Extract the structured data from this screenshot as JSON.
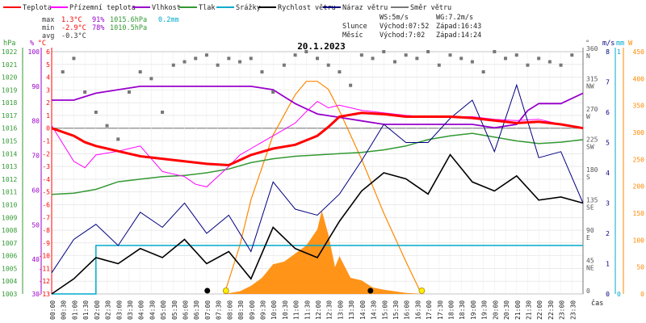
{
  "chart_data": {
    "type": "line",
    "title": "20.1.2023",
    "legend": [
      {
        "name": "Teplota",
        "color": "#ff0000"
      },
      {
        "name": "Přízemní teplota",
        "color": "#ff00ff"
      },
      {
        "name": "Vlhkost",
        "color": "#9900cc"
      },
      {
        "name": "Tlak",
        "color": "#339933"
      },
      {
        "name": "Srážky",
        "color": "#00aacc"
      },
      {
        "name": "Rychlost větru",
        "color": "#000000"
      },
      {
        "name": "Náraz větru",
        "color": "#000080"
      },
      {
        "name": "Směr větru",
        "color": "#777777"
      }
    ],
    "stats": {
      "max": {
        "label": "max",
        "temp": "1.3°C",
        "hum": "91%",
        "press": "1015.6hPa",
        "rain": "0.2mm"
      },
      "min": {
        "label": "min",
        "temp": "-2.9°C",
        "hum": "78%",
        "press": "1010.5hPa"
      },
      "avg": {
        "label": "avg",
        "temp": "-0.3°C"
      }
    },
    "info": {
      "ws": "WS:5m/s",
      "wg": "WG:7.2m/s",
      "slunce_label": "Slunce",
      "slunce_rise": "Východ:07:52",
      "slunce_set": "Západ:16:43",
      "mesic_label": "Měsíc",
      "mesic_rise": "Východ:7:02",
      "mesic_set": "Západ:14:24"
    },
    "axes": {
      "hpa": {
        "unit": "hPa",
        "min": 1003,
        "max": 1022,
        "ticks": [
          1003,
          1004,
          1005,
          1006,
          1007,
          1008,
          1009,
          1010,
          1011,
          1012,
          1013,
          1014,
          1015,
          1016,
          1017,
          1018,
          1019,
          1020,
          1021,
          1022
        ]
      },
      "pct": {
        "unit": "%",
        "min": 30,
        "max": 100,
        "ticks": [
          30,
          40,
          50,
          60,
          70,
          80,
          90,
          100
        ]
      },
      "temp": {
        "unit": "°C",
        "min": -13,
        "max": 6,
        "ticks": [
          -13,
          -12,
          -11,
          -10,
          -9,
          -8,
          -7,
          -6,
          -5,
          -4,
          -3,
          -2,
          -1,
          0,
          1,
          2,
          3,
          4,
          5,
          6
        ]
      },
      "dir": {
        "unit": "°",
        "ticks": [
          {
            "v": 0,
            "t": "0"
          },
          {
            "v": 45,
            "t": "45",
            "c": "NE"
          },
          {
            "v": 90,
            "t": "90",
            "c": "E"
          },
          {
            "v": 135,
            "t": "135",
            "c": "SE"
          },
          {
            "v": 180,
            "t": "180",
            "c": "S"
          },
          {
            "v": 225,
            "t": "225",
            "c": "SW"
          },
          {
            "v": 270,
            "t": "270",
            "c": "W"
          },
          {
            "v": 315,
            "t": "315",
            "c": "NW"
          },
          {
            "v": 360,
            "t": "360",
            "c": "N"
          }
        ]
      },
      "wind": {
        "unit": "m/s",
        "min": 0,
        "max": 8,
        "ticks": [
          0,
          1,
          2,
          3,
          4,
          5,
          6,
          7,
          8
        ]
      },
      "rain": {
        "unit": "mm",
        "min": 0,
        "max": 1,
        "ticks": [
          0,
          1
        ]
      },
      "rad": {
        "unit": "W",
        "min": 0,
        "max": 450,
        "ticks": [
          0,
          50,
          100,
          150,
          200,
          250,
          300,
          350,
          400,
          450
        ]
      },
      "x_label": "čas",
      "times": [
        "00:00",
        "00:30",
        "01:00",
        "01:30",
        "02:00",
        "02:30",
        "03:00",
        "03:30",
        "04:00",
        "04:30",
        "05:00",
        "05:30",
        "06:00",
        "06:30",
        "07:00",
        "07:30",
        "08:00",
        "08:30",
        "09:00",
        "09:30",
        "10:00",
        "10:30",
        "11:00",
        "11:30",
        "12:00",
        "12:30",
        "13:00",
        "13:30",
        "14:00",
        "14:30",
        "15:00",
        "15:30",
        "16:00",
        "16:30",
        "17:00",
        "17:30",
        "18:00",
        "18:30",
        "19:00",
        "19:30",
        "20:00",
        "20:30",
        "21:00",
        "21:30",
        "22:00",
        "22:30",
        "23:00",
        "23:30"
      ]
    },
    "temperature": {
      "x_hours": [
        0,
        1,
        1.5,
        2,
        3,
        4,
        5,
        6,
        7,
        8,
        8.5,
        9,
        10,
        11,
        12,
        12.5,
        13,
        14,
        15,
        16,
        17,
        18,
        19,
        20,
        20.5,
        21,
        22,
        23,
        24
      ],
      "y": [
        0,
        -0.6,
        -1.1,
        -1.4,
        -1.8,
        -2.2,
        -2.4,
        -2.6,
        -2.8,
        -2.9,
        -2.5,
        -2.1,
        -1.6,
        -1.3,
        -0.6,
        0.1,
        0.9,
        1.2,
        1.1,
        0.9,
        0.9,
        0.9,
        0.8,
        0.6,
        0.5,
        0.4,
        0.5,
        0.3,
        0
      ]
    },
    "ground_temperature": {
      "x_hours": [
        0,
        1,
        1.5,
        2,
        3,
        4,
        4.5,
        5,
        6,
        6.5,
        7,
        7.5,
        8,
        8.5,
        9,
        9.5,
        10,
        11,
        11.5,
        12,
        12.5,
        13,
        14,
        15,
        16,
        17,
        18,
        19,
        20,
        21,
        22,
        23,
        24
      ],
      "y": [
        0.2,
        -2.6,
        -3.1,
        -2.1,
        -1.8,
        -1.4,
        -2.4,
        -3.4,
        -3.8,
        -4.4,
        -4.6,
        -3.8,
        -3.0,
        -2.1,
        -1.6,
        -1.1,
        -0.6,
        0.4,
        1.3,
        2.1,
        1.6,
        1.8,
        1.4,
        1.2,
        1.0,
        0.9,
        0.9,
        0.9,
        0.7,
        0.6,
        0.7,
        0.3,
        0
      ]
    },
    "humidity": {
      "x_hours": [
        0,
        1,
        2,
        3,
        4,
        5,
        6,
        7,
        8,
        9,
        10,
        10.5,
        11,
        12,
        13,
        14,
        15,
        16,
        17,
        18,
        19,
        20,
        21,
        21.5,
        22,
        23,
        24
      ],
      "y": [
        86,
        86,
        88,
        89,
        90,
        90,
        90,
        90,
        90,
        90,
        89,
        87,
        85,
        82,
        81,
        80,
        79,
        79,
        79,
        79,
        79,
        78,
        79,
        83,
        85,
        85,
        88
      ]
    },
    "pressure": {
      "x_hours": [
        0,
        1,
        2,
        3,
        4,
        5,
        6,
        7,
        8,
        9,
        10,
        11,
        12,
        13,
        14,
        15,
        16,
        17,
        18,
        19,
        20,
        21,
        22,
        23,
        24
      ],
      "y": [
        1010.8,
        1010.9,
        1011.2,
        1011.8,
        1012.0,
        1012.2,
        1012.3,
        1012.5,
        1012.8,
        1013.3,
        1013.6,
        1013.8,
        1013.9,
        1014.0,
        1014.1,
        1014.3,
        1014.6,
        1015.1,
        1015.4,
        1015.6,
        1015.3,
        1015.0,
        1014.8,
        1014.9,
        1015.1
      ]
    },
    "precipitation": {
      "x_hours": [
        0,
        2.0,
        2.0,
        24
      ],
      "y": [
        0,
        0,
        0.2,
        0.2
      ]
    },
    "wind_speed": {
      "x_hours": [
        0,
        1,
        2,
        3,
        4,
        5,
        6,
        7,
        8,
        9,
        10,
        11,
        12,
        13,
        14,
        15,
        16,
        17,
        18,
        19,
        20,
        21,
        22,
        23,
        24
      ],
      "y": [
        0,
        0.5,
        1.2,
        1.0,
        1.5,
        1.2,
        1.8,
        1.0,
        1.4,
        0.5,
        2.2,
        1.5,
        1.2,
        2.4,
        3.4,
        4.0,
        3.8,
        3.3,
        4.6,
        3.7,
        3.4,
        3.9,
        3.1,
        3.2,
        3.0
      ]
    },
    "wind_gust": {
      "x_hours": [
        0,
        1,
        2,
        3,
        4,
        5,
        6,
        7,
        8,
        9,
        10,
        11,
        12,
        13,
        14,
        15,
        16,
        17,
        18,
        19,
        20,
        21,
        22,
        23,
        24
      ],
      "y": [
        0.7,
        1.8,
        2.3,
        1.6,
        2.7,
        2.2,
        3.0,
        2.0,
        2.6,
        1.4,
        3.7,
        2.8,
        2.6,
        3.3,
        4.4,
        5.6,
        5.0,
        5.0,
        5.8,
        6.4,
        4.7,
        6.9,
        4.5,
        4.7,
        3.0
      ]
    },
    "wind_direction": {
      "x_hours": [
        0.5,
        1.0,
        1.5,
        2.0,
        2.5,
        3.0,
        3.5,
        4.0,
        4.5,
        5.0,
        5.5,
        6.0,
        6.5,
        7.0,
        7.5,
        8.0,
        8.5,
        9.0,
        9.5,
        10.0,
        10.5,
        11.0,
        11.5,
        12.0,
        12.5,
        13.0,
        13.5,
        14.0,
        14.5,
        15.0,
        15.5,
        16.0,
        16.5,
        17.0,
        17.5,
        18.0,
        18.5,
        19.0,
        19.5,
        20.0,
        20.5,
        21.0,
        21.5,
        22.0,
        22.5,
        23.0,
        23.5
      ],
      "y": [
        330,
        350,
        300,
        270,
        250,
        230,
        300,
        330,
        320,
        270,
        340,
        345,
        350,
        355,
        340,
        350,
        345,
        350,
        330,
        300,
        340,
        355,
        360,
        350,
        340,
        330,
        310,
        355,
        350,
        360,
        345,
        355,
        350,
        360,
        340,
        355,
        350,
        345,
        330,
        360,
        350,
        355,
        340,
        350,
        345,
        340,
        355
      ]
    },
    "solar_radiation": {
      "x_hours": [
        7.8,
        8.5,
        9,
        9.5,
        10,
        10.5,
        11,
        11.5,
        12,
        12.2,
        12.5,
        12.8,
        13,
        13.5,
        14,
        14.5,
        15,
        16,
        16.7
      ],
      "y": [
        0,
        5,
        15,
        30,
        55,
        60,
        75,
        90,
        120,
        155,
        110,
        50,
        70,
        30,
        25,
        12,
        8,
        2,
        0
      ]
    },
    "radiation_max": {
      "x_hours": [
        7.8,
        8.5,
        9,
        10,
        11,
        11.5,
        12,
        12.5,
        13,
        14,
        15,
        16,
        16.7
      ],
      "y": [
        0,
        90,
        175,
        295,
        370,
        395,
        395,
        380,
        340,
        250,
        150,
        60,
        0
      ]
    },
    "markers": {
      "sun": {
        "rise": 7.87,
        "set": 16.72
      },
      "moon": {
        "rise": 7.03,
        "set": 14.4
      }
    }
  }
}
